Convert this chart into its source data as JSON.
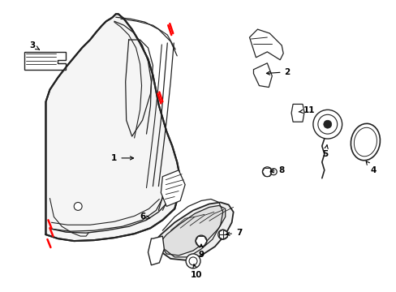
{
  "background_color": "#ffffff",
  "line_color": "#222222",
  "red_color": "#ff0000",
  "figsize": [
    4.89,
    3.6
  ],
  "dpi": 100
}
